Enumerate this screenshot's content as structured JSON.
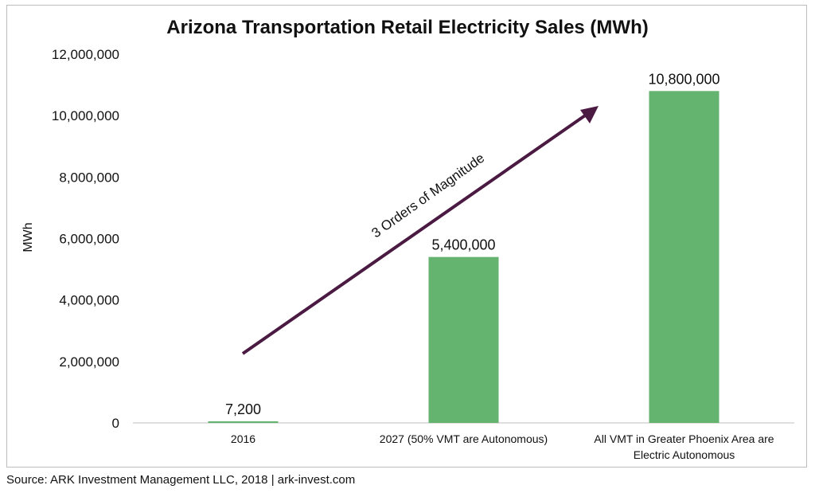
{
  "chart_data": {
    "type": "bar",
    "title": "Arizona Transportation Retail Electricity Sales (MWh)",
    "ylabel": "MWh",
    "xlabel": "",
    "categories": [
      [
        "2016"
      ],
      [
        "2027 (50% VMT are Autonomous)"
      ],
      [
        "All VMT in Greater Phoenix Area are",
        "Electric Autonomous"
      ]
    ],
    "values": [
      7200,
      5400000,
      10800000
    ],
    "data_labels": [
      "7,200",
      "5,400,000",
      "10,800,000"
    ],
    "ylim": [
      0,
      12000000
    ],
    "yticks": [
      0,
      2000000,
      4000000,
      6000000,
      8000000,
      10000000,
      12000000
    ],
    "ytick_labels": [
      "0",
      "2,000,000",
      "4,000,000",
      "6,000,000",
      "8,000,000",
      "10,000,000",
      "12,000,000"
    ],
    "bar_color": "#64b36f",
    "grid": false,
    "annotation": {
      "text": "3 Orders of Magnitude",
      "color": "#4a1a42"
    }
  },
  "footer": {
    "source": "Source: ARK Investment Management LLC, 2018  |  ark-invest.com"
  }
}
